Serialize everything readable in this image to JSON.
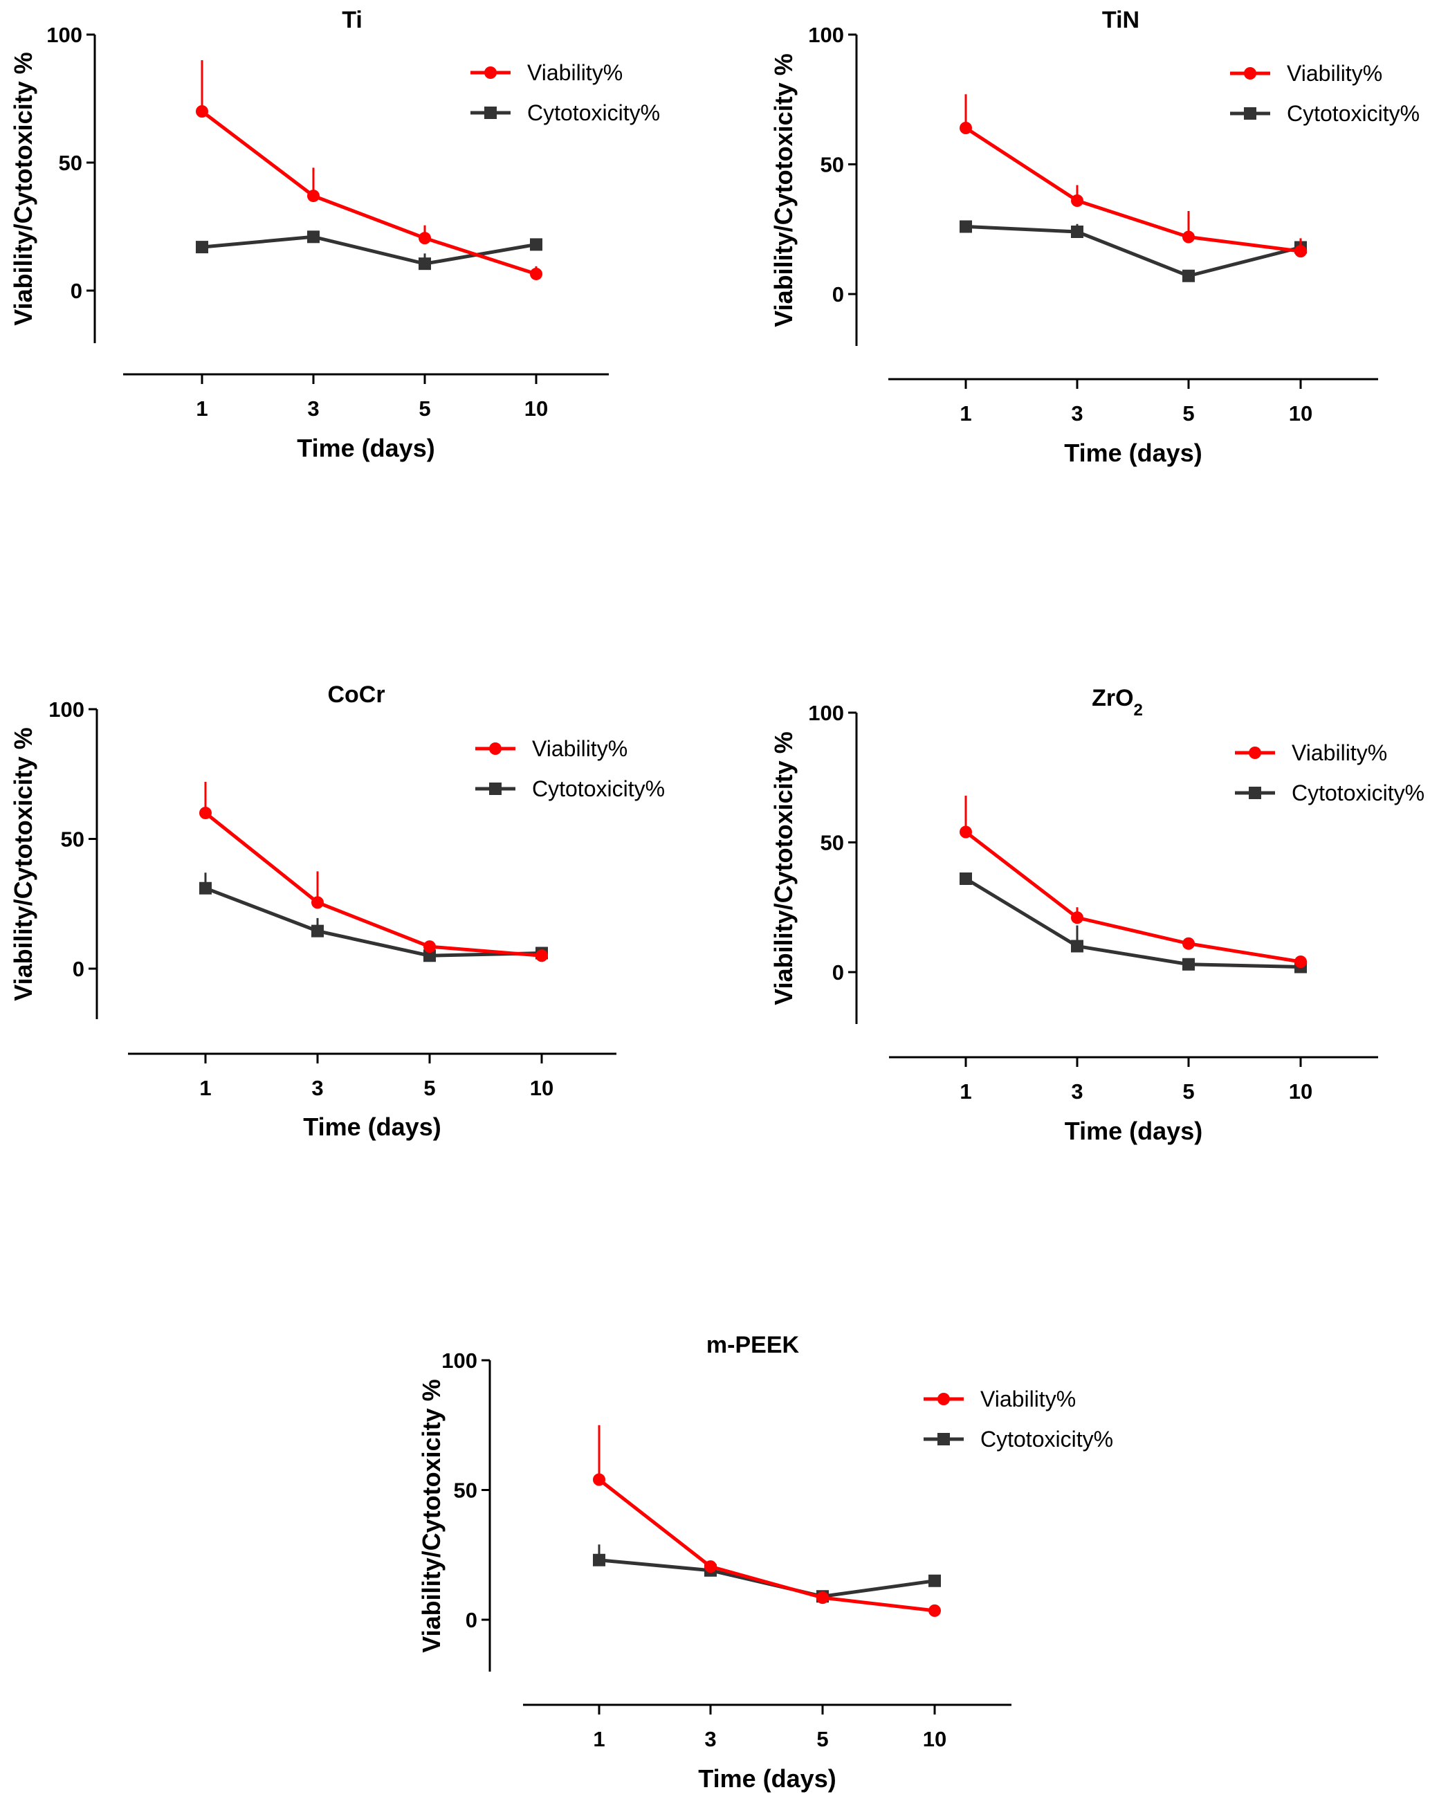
{
  "colors": {
    "viability": "#ff0000",
    "cytotoxicity": "#333333",
    "axis": "#000000"
  },
  "chart_data": [
    {
      "type": "line",
      "title": "Ti",
      "categories": [
        "1",
        "3",
        "5",
        "10"
      ],
      "xlabel": "Time (days)",
      "ylabel": "Viability/Cytotoxicity %",
      "yticks": [
        "0",
        "50",
        "100"
      ],
      "ylim": [
        -20,
        100
      ],
      "series": [
        {
          "name": "Viability%",
          "marker": "circle",
          "values": [
            70,
            37,
            20.5,
            6.5
          ],
          "err": [
            20,
            11,
            5,
            3
          ]
        },
        {
          "name": "Cytotoxicity%",
          "marker": "square",
          "values": [
            17,
            21,
            10.5,
            18
          ],
          "err": [
            2,
            2,
            4,
            1.5
          ]
        }
      ],
      "legend": "top-right"
    },
    {
      "type": "line",
      "title": "TiN",
      "categories": [
        "1",
        "3",
        "5",
        "10"
      ],
      "xlabel": "Time (days)",
      "ylabel": "Viability/Cytotoxicity %",
      "yticks": [
        "0",
        "50",
        "100"
      ],
      "ylim": [
        -20,
        100
      ],
      "series": [
        {
          "name": "Viability%",
          "marker": "circle",
          "values": [
            64,
            36,
            22,
            16.5
          ],
          "err": [
            13,
            6,
            10,
            5
          ]
        },
        {
          "name": "Cytotoxicity%",
          "marker": "square",
          "values": [
            26,
            24,
            7,
            18
          ],
          "err": [
            1,
            3,
            2,
            1
          ]
        }
      ],
      "legend": "top-right"
    },
    {
      "type": "line",
      "title": "CoCr",
      "categories": [
        "1",
        "3",
        "5",
        "10"
      ],
      "xlabel": "Time (days)",
      "ylabel": "Viability/Cytotoxicity %",
      "yticks": [
        "0",
        "50",
        "100"
      ],
      "ylim": [
        -20,
        100
      ],
      "series": [
        {
          "name": "Viability%",
          "marker": "circle",
          "values": [
            60,
            25.5,
            8.5,
            5
          ],
          "err": [
            12,
            12,
            2,
            1
          ]
        },
        {
          "name": "Cytotoxicity%",
          "marker": "square",
          "values": [
            31,
            14.5,
            5,
            6
          ],
          "err": [
            6,
            5,
            1,
            1
          ]
        }
      ],
      "legend": "top-right"
    },
    {
      "type": "line",
      "title": "ZrO",
      "title_subscript": "2",
      "categories": [
        "1",
        "3",
        "5",
        "10"
      ],
      "xlabel": "Time (days)",
      "ylabel": "Viability/Cytotoxicity %",
      "yticks": [
        "0",
        "50",
        "100"
      ],
      "ylim": [
        -20,
        100
      ],
      "series": [
        {
          "name": "Viability%",
          "marker": "circle",
          "values": [
            54,
            21,
            11,
            4
          ],
          "err": [
            14,
            4,
            2,
            1
          ]
        },
        {
          "name": "Cytotoxicity%",
          "marker": "square",
          "values": [
            36,
            10,
            3,
            2
          ],
          "err": [
            1,
            8,
            1,
            1
          ]
        }
      ],
      "legend": "top-right"
    },
    {
      "type": "line",
      "title": "m-PEEK",
      "categories": [
        "1",
        "3",
        "5",
        "10"
      ],
      "xlabel": "Time (days)",
      "ylabel": "Viability/Cytotoxicity %",
      "yticks": [
        "0",
        "50",
        "100"
      ],
      "ylim": [
        -20,
        100
      ],
      "series": [
        {
          "name": "Viability%",
          "marker": "circle",
          "values": [
            54,
            20.5,
            8.5,
            3.5
          ],
          "err": [
            21,
            2,
            1,
            1
          ]
        },
        {
          "name": "Cytotoxicity%",
          "marker": "square",
          "values": [
            23,
            19,
            9,
            15
          ],
          "err": [
            6,
            1,
            2,
            1
          ]
        }
      ],
      "legend": "top-right"
    }
  ]
}
